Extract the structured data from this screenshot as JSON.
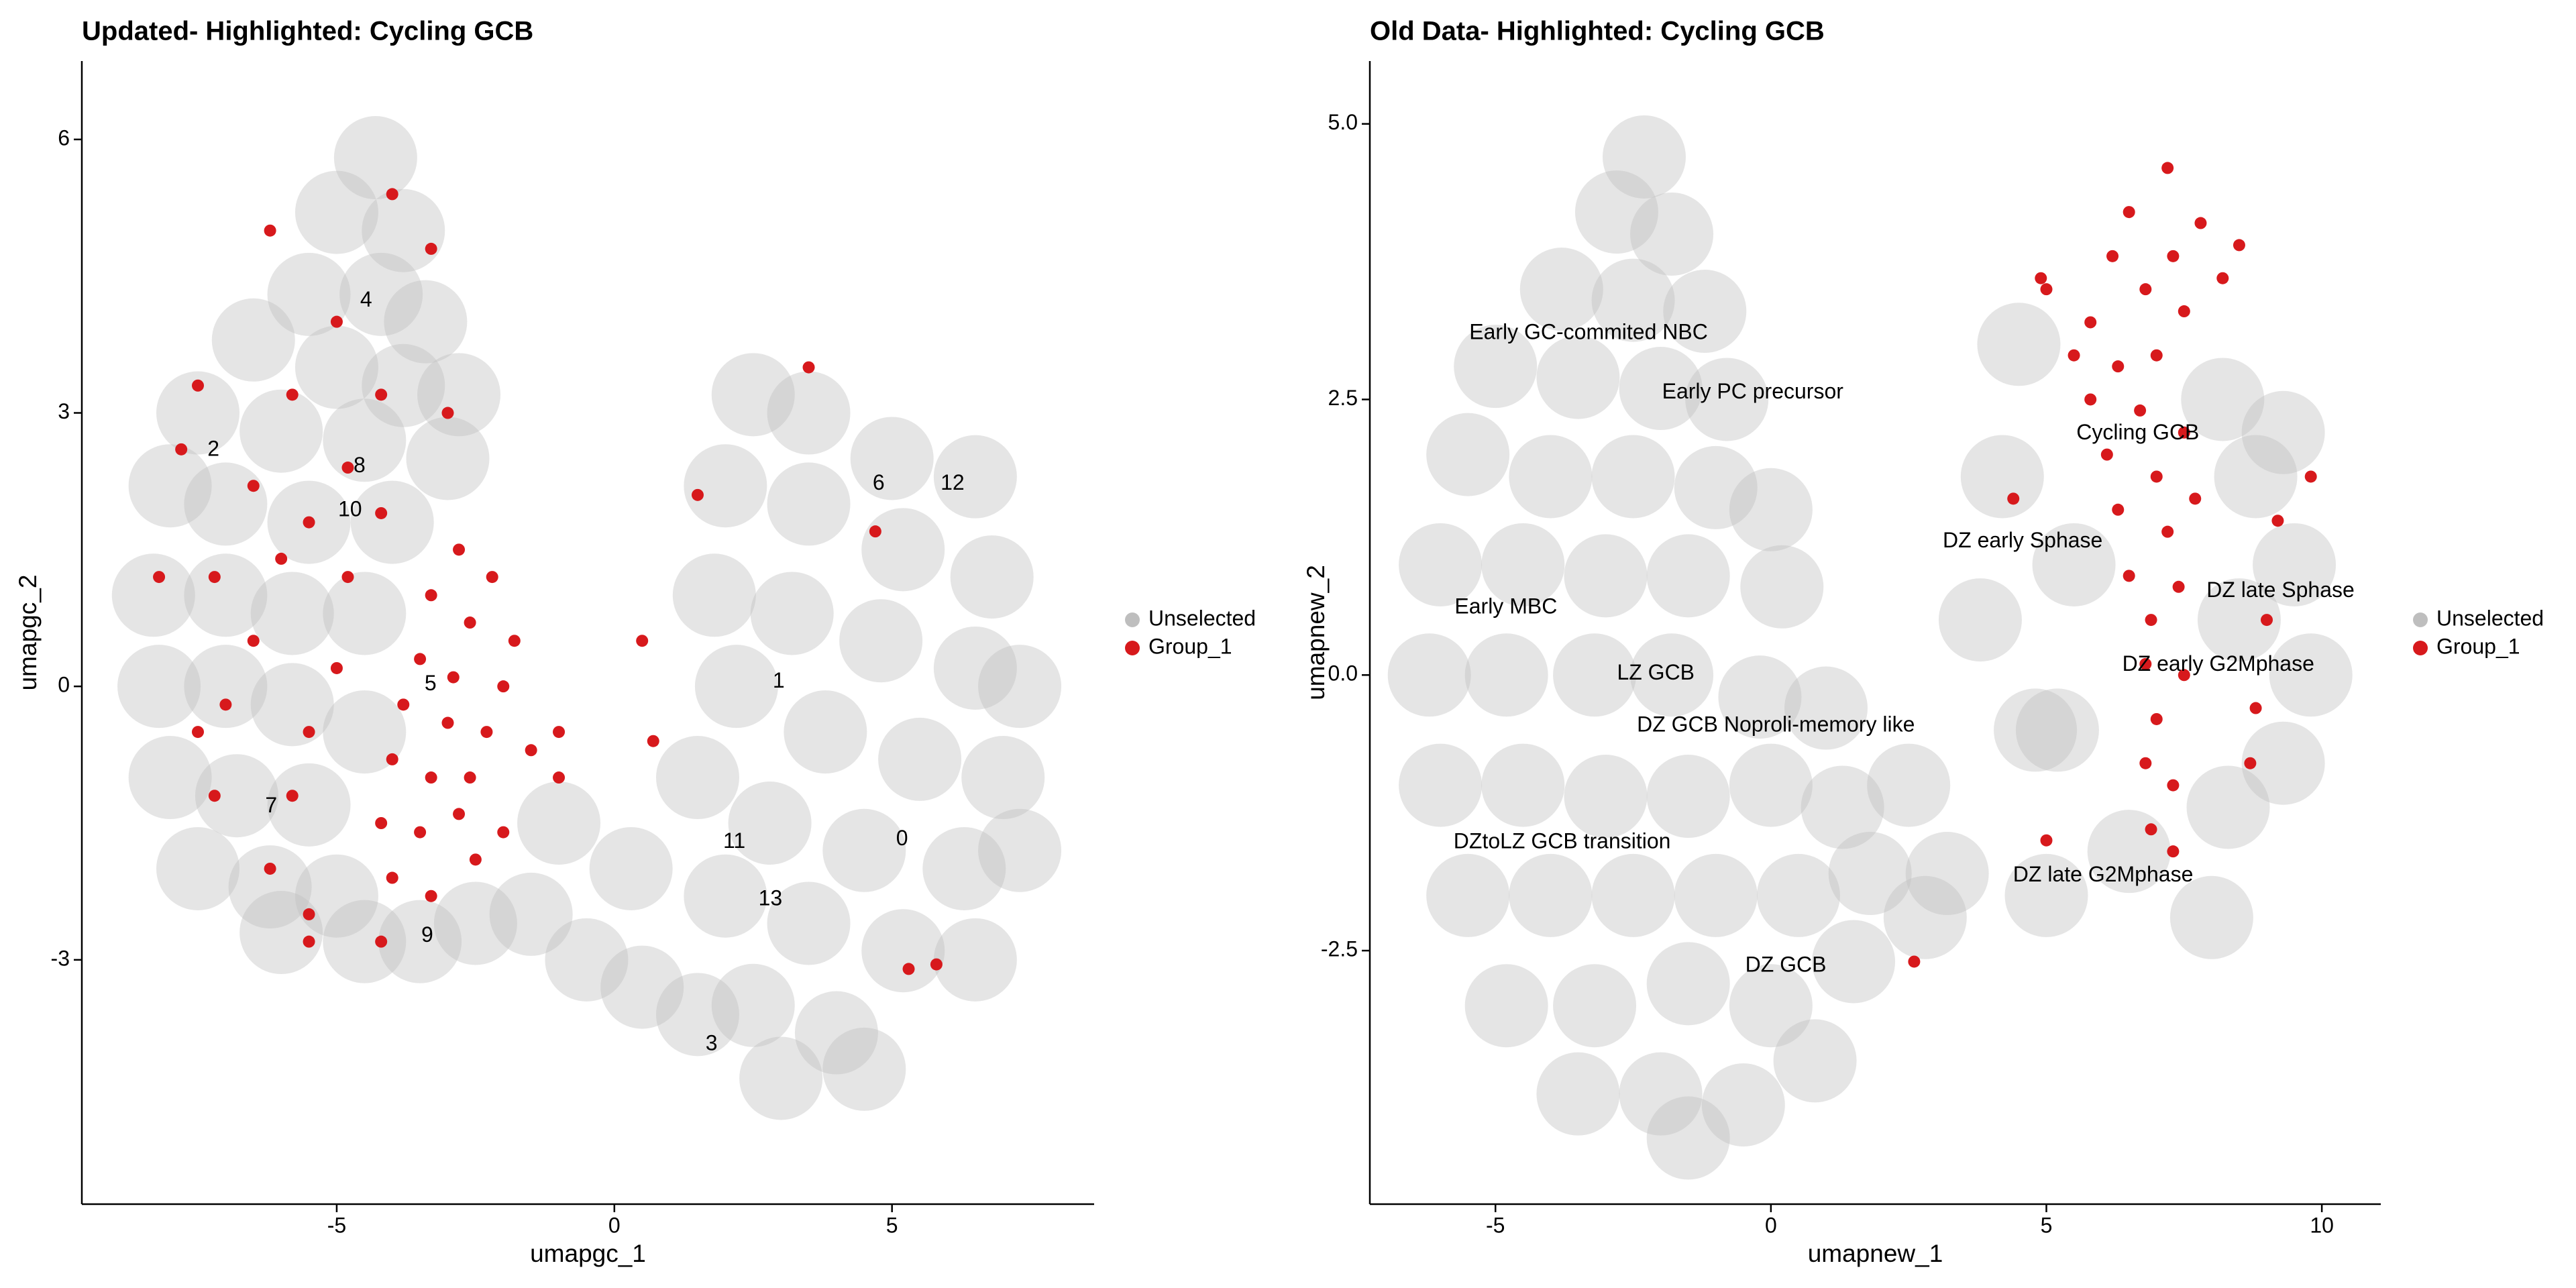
{
  "chart_data": [
    {
      "type": "scatter",
      "title": "Updated- Highlighted: Cycling GCB",
      "x_label": "umapgc_1",
      "y_label": "umapgc_2",
      "xlim": [
        -9.59,
        8.64
      ],
      "ylim": [
        -5.68,
        6.86
      ],
      "xticks": [
        -5,
        0,
        5
      ],
      "yticks": [
        -3,
        0,
        3,
        6
      ],
      "series": [
        {
          "name": "Unselected",
          "color": "#bebebe",
          "x": [
            -4.3,
            -5.0,
            -3.8,
            -5.5,
            -4.2,
            -3.4,
            -6.5,
            -5.0,
            -3.8,
            -2.8,
            -7.5,
            -6.0,
            -4.5,
            -3.0,
            -8.0,
            -7.0,
            -5.5,
            -4.0,
            -8.3,
            -7.0,
            -5.8,
            -4.5,
            -8.2,
            -7.0,
            -5.8,
            -4.5,
            -8.0,
            -6.8,
            -5.5,
            -7.5,
            -6.2,
            -5.0,
            -6.0,
            -4.5,
            -3.5,
            -2.5,
            -1.5,
            -0.5,
            0.5,
            1.5,
            -1.0,
            0.3,
            2.5,
            3.5,
            5.0,
            6.5,
            2.0,
            3.5,
            5.2,
            6.8,
            1.8,
            3.2,
            4.8,
            6.5,
            7.3,
            2.2,
            3.8,
            5.5,
            7.0,
            1.5,
            2.8,
            4.5,
            6.3,
            7.3,
            2.0,
            3.5,
            5.2,
            6.5,
            2.5,
            4.0,
            3.0,
            4.5
          ],
          "y": [
            5.8,
            5.2,
            5.0,
            4.3,
            4.3,
            4.0,
            3.8,
            3.5,
            3.3,
            3.2,
            3.0,
            2.8,
            2.7,
            2.5,
            2.2,
            2.0,
            1.8,
            1.8,
            1.0,
            1.0,
            0.8,
            0.8,
            0.0,
            0.0,
            -0.2,
            -0.5,
            -1.0,
            -1.2,
            -1.3,
            -2.0,
            -2.2,
            -2.3,
            -2.7,
            -2.8,
            -2.8,
            -2.6,
            -2.5,
            -3.0,
            -3.3,
            -3.6,
            -1.5,
            -2.0,
            3.2,
            3.0,
            2.5,
            2.3,
            2.2,
            2.0,
            1.5,
            1.2,
            1.0,
            0.8,
            0.5,
            0.2,
            0.0,
            0.0,
            -0.5,
            -0.8,
            -1.0,
            -1.0,
            -1.5,
            -1.8,
            -2.0,
            -1.8,
            -2.3,
            -2.6,
            -2.9,
            -3.0,
            -3.5,
            -3.8,
            -4.3,
            -4.2
          ]
        },
        {
          "name": "Group_1",
          "color": "#d7191c",
          "x": [
            -2.8,
            -2.2,
            -3.3,
            -2.6,
            -1.8,
            -3.5,
            -2.9,
            -2.0,
            -3.8,
            -3.0,
            -2.3,
            -1.5,
            -4.0,
            -3.3,
            -2.6,
            -1.0,
            -4.2,
            -3.5,
            -2.8,
            -2.0,
            -4.0,
            -3.3,
            -2.5,
            -4.0,
            -3.3,
            -6.2,
            -5.0,
            -7.5,
            -5.8,
            -4.2,
            -3.0,
            -4.8,
            -6.5,
            -7.8,
            -5.5,
            -4.2,
            -6.0,
            -7.2,
            -8.2,
            -4.8,
            -6.5,
            -5.0,
            -7.0,
            -5.5,
            -7.5,
            -5.8,
            -7.2,
            -6.2,
            -5.5,
            -4.2,
            -5.5,
            -1.0,
            0.7,
            1.5,
            3.5,
            4.7,
            0.5,
            5.3,
            5.8
          ],
          "y": [
            1.5,
            1.2,
            1.0,
            0.7,
            0.5,
            0.3,
            0.1,
            0.0,
            -0.2,
            -0.4,
            -0.5,
            -0.7,
            -0.8,
            -1.0,
            -1.0,
            -1.0,
            -1.5,
            -1.6,
            -1.4,
            -1.6,
            -2.1,
            -2.3,
            -1.9,
            5.4,
            4.8,
            5.0,
            4.0,
            3.3,
            3.2,
            3.2,
            3.0,
            2.4,
            2.2,
            2.6,
            1.8,
            1.9,
            1.4,
            1.2,
            1.2,
            1.2,
            0.5,
            0.2,
            -0.2,
            -0.5,
            -0.5,
            -1.2,
            -1.2,
            -2.0,
            -2.5,
            -2.8,
            -2.8,
            -0.5,
            -0.6,
            2.1,
            3.5,
            1.7,
            0.5,
            -3.1,
            -3.05
          ]
        }
      ],
      "annotations": [
        {
          "text": "4",
          "x": -4.47,
          "y": 4.23
        },
        {
          "text": "2",
          "x": -7.22,
          "y": 2.59
        },
        {
          "text": "8",
          "x": -4.59,
          "y": 2.41
        },
        {
          "text": "10",
          "x": -4.76,
          "y": 1.93
        },
        {
          "text": "5",
          "x": -3.31,
          "y": 0.02
        },
        {
          "text": "7",
          "x": -6.18,
          "y": -1.32
        },
        {
          "text": "9",
          "x": -3.37,
          "y": -2.74
        },
        {
          "text": "6",
          "x": 4.76,
          "y": 2.22
        },
        {
          "text": "12",
          "x": 6.09,
          "y": 2.22
        },
        {
          "text": "1",
          "x": 2.96,
          "y": 0.05
        },
        {
          "text": "11",
          "x": 2.16,
          "y": -1.71
        },
        {
          "text": "0",
          "x": 5.18,
          "y": -1.68
        },
        {
          "text": "13",
          "x": 2.81,
          "y": -2.34
        },
        {
          "text": "3",
          "x": 1.75,
          "y": -3.93
        }
      ]
    },
    {
      "type": "scatter",
      "title": "Old Data- Highlighted: Cycling GCB",
      "x_label": "umapnew_1",
      "y_label": "umapnew_2",
      "xlim": [
        -7.28,
        11.07
      ],
      "ylim": [
        -4.8,
        5.57
      ],
      "xticks": [
        -5,
        0,
        5,
        10
      ],
      "yticks": [
        -2.5,
        {
          "value": 0,
          "label": "0.0"
        },
        2.5,
        {
          "value": 5,
          "label": "5.0"
        }
      ],
      "series": [
        {
          "name": "Unselected",
          "color": "#bebebe",
          "x": [
            -2.3,
            -2.8,
            -1.8,
            -3.8,
            -2.5,
            -1.2,
            -5.0,
            -3.5,
            -2.0,
            -0.8,
            -5.5,
            -4.0,
            -2.5,
            -1.0,
            0.0,
            -6.0,
            -4.5,
            -3.0,
            -1.5,
            0.2,
            -6.2,
            -4.8,
            -3.2,
            -1.8,
            -0.2,
            1.0,
            -6.0,
            -4.5,
            -3.0,
            -1.5,
            0.0,
            1.3,
            -5.5,
            -4.0,
            -2.5,
            -1.0,
            0.5,
            1.8,
            -4.8,
            -3.2,
            -1.5,
            0.0,
            1.5,
            -3.5,
            -2.0,
            -0.5,
            0.8,
            -1.5,
            2.5,
            3.2,
            3.8,
            4.2,
            4.5,
            4.8,
            5.0,
            5.5,
            6.5,
            8.3,
            8.5,
            8.8,
            9.3,
            9.5,
            9.8,
            9.3,
            8.2,
            5.2,
            8.0,
            2.8
          ],
          "y": [
            4.7,
            4.2,
            4.0,
            3.5,
            3.4,
            3.3,
            2.8,
            2.7,
            2.6,
            2.5,
            2.0,
            1.8,
            1.8,
            1.7,
            1.5,
            1.0,
            1.0,
            0.9,
            0.9,
            0.8,
            0.0,
            0.0,
            0.0,
            0.0,
            -0.2,
            -0.3,
            -1.0,
            -1.0,
            -1.1,
            -1.1,
            -1.0,
            -1.2,
            -2.0,
            -2.0,
            -2.0,
            -2.0,
            -2.0,
            -1.8,
            -3.0,
            -3.0,
            -2.8,
            -3.0,
            -2.6,
            -3.8,
            -3.8,
            -3.9,
            -3.5,
            -4.2,
            -1.0,
            -1.8,
            0.5,
            1.8,
            3.0,
            -0.5,
            -2.0,
            1.0,
            -1.6,
            -1.2,
            0.5,
            1.8,
            2.2,
            1.0,
            0.0,
            -0.8,
            2.5,
            -0.5,
            -2.2,
            -2.2
          ]
        },
        {
          "name": "Group_1",
          "color": "#d7191c",
          "x": [
            7.2,
            6.5,
            7.8,
            8.5,
            6.2,
            7.3,
            8.2,
            6.8,
            5.8,
            7.5,
            5.5,
            6.3,
            7.0,
            5.8,
            6.7,
            7.5,
            6.1,
            7.0,
            7.7,
            6.3,
            7.2,
            6.5,
            7.4,
            6.9,
            6.8,
            7.5,
            7.0,
            6.8,
            7.3,
            6.9,
            4.9,
            5.0,
            4.4,
            5.0,
            2.6,
            9.2,
            9.8,
            9.0,
            8.8,
            8.7,
            7.3
          ],
          "y": [
            4.6,
            4.2,
            4.1,
            3.9,
            3.8,
            3.8,
            3.6,
            3.5,
            3.2,
            3.3,
            2.9,
            2.8,
            2.9,
            2.5,
            2.4,
            2.2,
            2.0,
            1.8,
            1.6,
            1.5,
            1.3,
            0.9,
            0.8,
            0.5,
            0.1,
            0.0,
            -0.4,
            -0.8,
            -1.0,
            -1.4,
            3.6,
            3.5,
            1.6,
            -1.5,
            -2.6,
            1.4,
            1.8,
            0.5,
            -0.3,
            -0.8,
            -1.6
          ]
        }
      ],
      "annotations": [
        {
          "text": "Early GC-commited NBC",
          "x": -3.31,
          "y": 3.1
        },
        {
          "text": "Early PC precursor",
          "x": -0.33,
          "y": 2.56
        },
        {
          "text": "Cycling GCB",
          "x": 6.66,
          "y": 2.19
        },
        {
          "text": "DZ early  Sphase",
          "x": 4.57,
          "y": 1.21
        },
        {
          "text": "DZ late Sphase",
          "x": 9.25,
          "y": 0.76
        },
        {
          "text": "Early MBC",
          "x": -4.81,
          "y": 0.61
        },
        {
          "text": "DZ early G2Mphase",
          "x": 8.12,
          "y": 0.09
        },
        {
          "text": "LZ GCB",
          "x": -2.09,
          "y": 0.01
        },
        {
          "text": "DZ GCB Noproli-memory like",
          "x": 0.09,
          "y": -0.46
        },
        {
          "text": "DZtoLZ GCB transition",
          "x": -3.79,
          "y": -1.52
        },
        {
          "text": "DZ late G2Mphase",
          "x": 6.03,
          "y": -1.82
        },
        {
          "text": "DZ GCB",
          "x": 0.27,
          "y": -2.64
        }
      ]
    }
  ]
}
